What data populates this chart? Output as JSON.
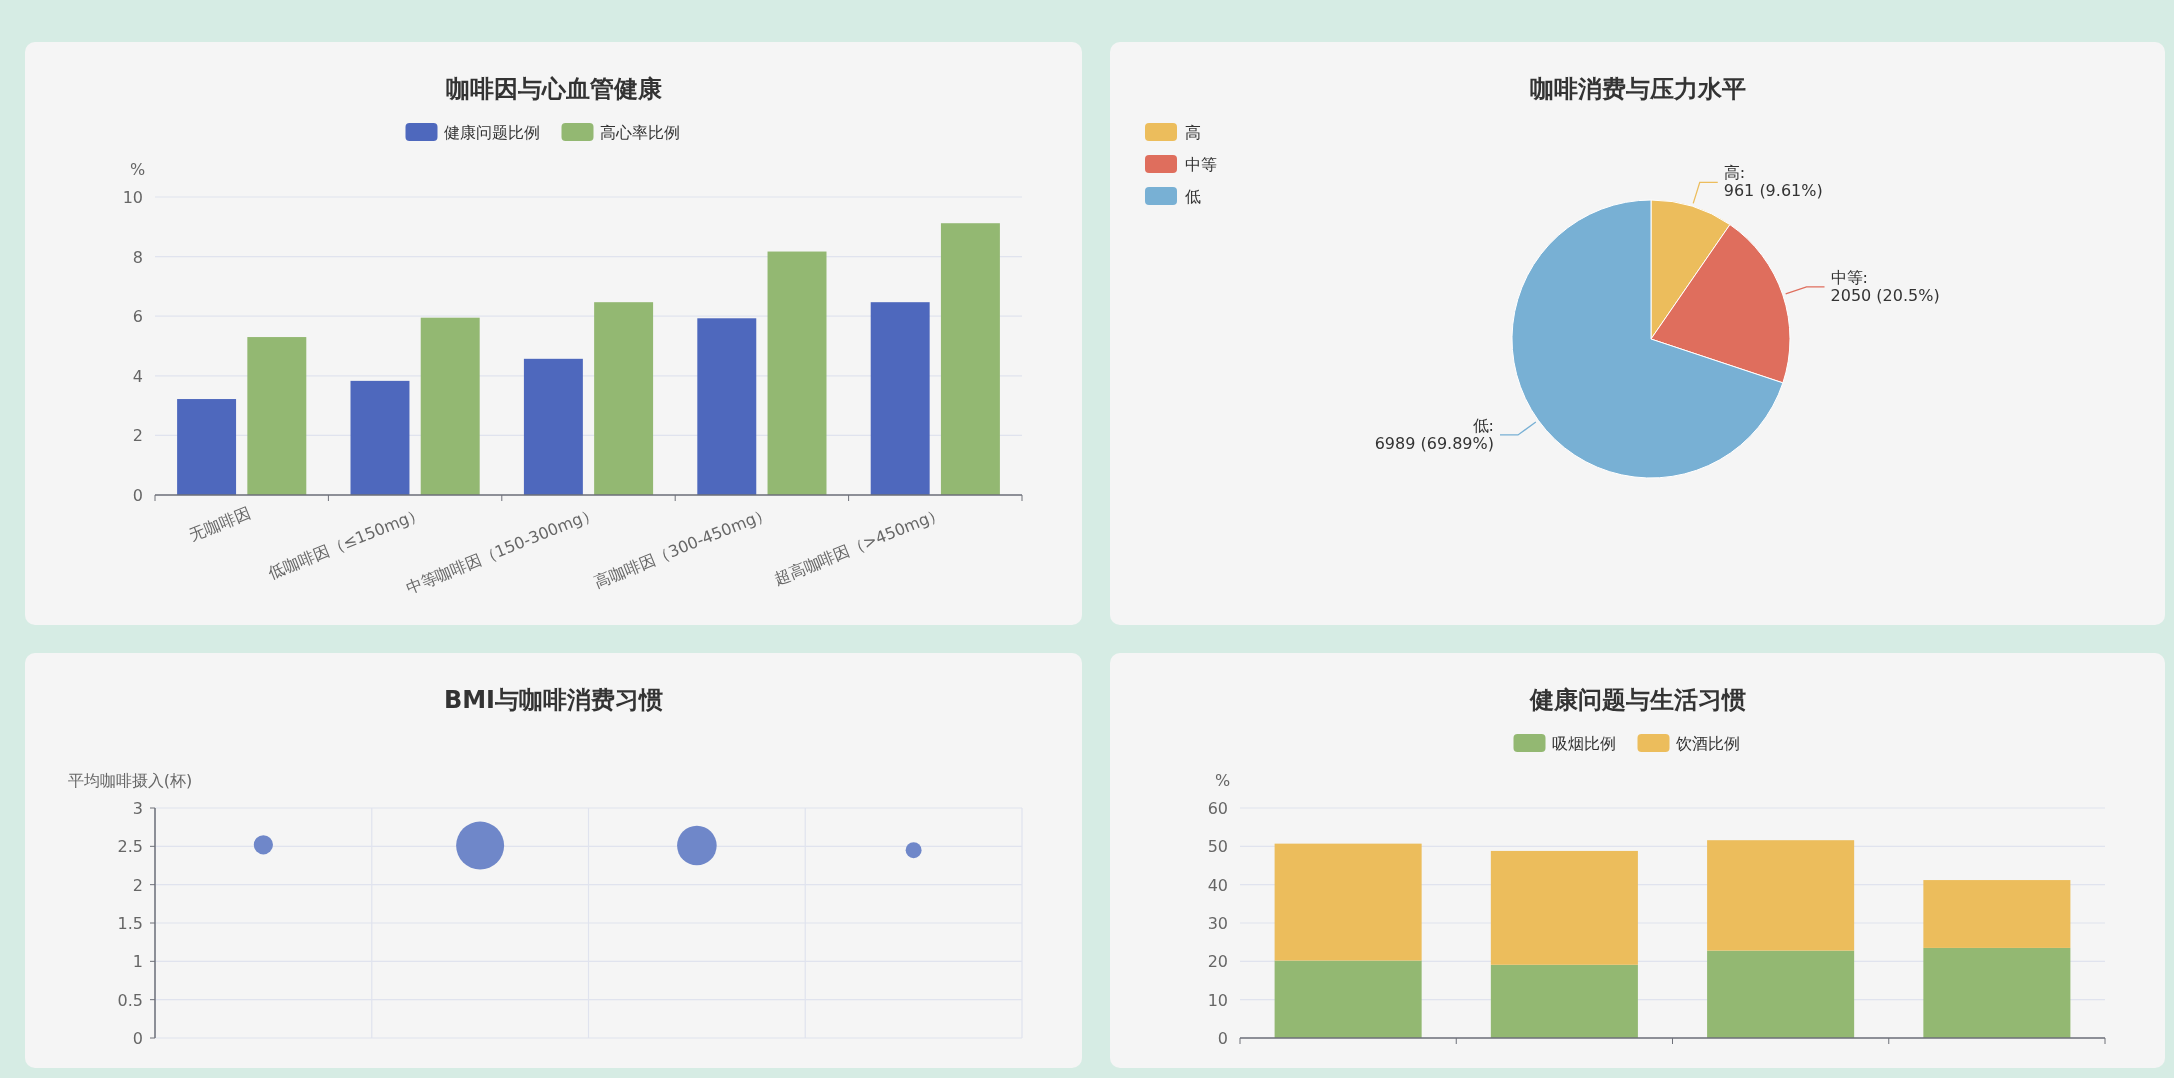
{
  "chart_data": [
    {
      "type": "bar",
      "title": "咖啡因与心血管健康",
      "ylabel": "%",
      "categories": [
        "无咖啡因",
        "低咖啡因（≤150mg）",
        "中等咖啡因（150-300mg）",
        "高咖啡因（300-450mg）",
        "超高咖啡因（>450mg）"
      ],
      "series": [
        {
          "name": "健康问题比例",
          "color": "#4e68bd",
          "values": [
            3.22,
            3.83,
            4.57,
            5.93,
            6.47
          ]
        },
        {
          "name": "高心率比例",
          "color": "#93b872",
          "values": [
            5.3,
            5.95,
            6.47,
            8.17,
            9.12
          ]
        }
      ],
      "ylim": [
        0,
        10
      ],
      "yticks": [
        0,
        2,
        4,
        6,
        8,
        10
      ],
      "grid": "y",
      "legend": "top"
    },
    {
      "type": "pie",
      "title": "咖啡消费与压力水平",
      "categories": [
        "高",
        "中等",
        "低"
      ],
      "values": [
        961,
        2050,
        6989
      ],
      "colors": [
        "#ecbd5c",
        "#df6e5d",
        "#78b0d4"
      ],
      "value_labels": [
        "高:\n961 (9.61%)",
        "中等:\n2050 (20.5%)",
        "低:\n6989 (69.89%)"
      ],
      "legend": "top left"
    },
    {
      "type": "bubble",
      "title": "BMI与咖啡消费习惯",
      "ylabel": "平均咖啡摄入(杯)",
      "categories": [
        null,
        null,
        null,
        null
      ],
      "values": [
        2.52,
        2.51,
        2.51,
        2.45
      ],
      "sizes": [
        0.16,
        1,
        0.68,
        0.11
      ],
      "color": "#6f87c9",
      "ylim": [
        0,
        3
      ],
      "yticks": [
        0,
        0.5,
        1,
        1.5,
        2,
        2.5,
        3
      ],
      "grid": true
    },
    {
      "type": "bar",
      "stacked": true,
      "title": "健康问题与生活习惯",
      "ylabel": "%",
      "categories": [
        null,
        null,
        null,
        null
      ],
      "series": [
        {
          "name": "吸烟比例",
          "color": "#93b872",
          "values": [
            20.2,
            19.1,
            22.8,
            23.5
          ]
        },
        {
          "name": "饮酒比例",
          "color": "#ecbd5c",
          "values": [
            30.5,
            29.7,
            28.8,
            17.7
          ]
        }
      ],
      "ylim": [
        0,
        60
      ],
      "yticks": [
        0,
        10,
        20,
        30,
        40,
        50,
        60
      ],
      "grid": "y",
      "legend": "top"
    }
  ]
}
